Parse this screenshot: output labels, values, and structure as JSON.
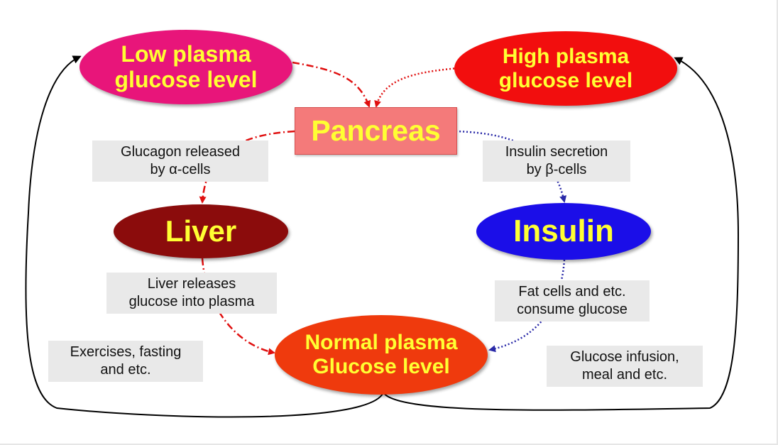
{
  "nodes": {
    "low_glucose": "Low plasma\nglucose level",
    "high_glucose": "High plasma\nglucose level",
    "pancreas": "Pancreas",
    "liver": "Liver",
    "insulin": "Insulin",
    "normal_glucose": "Normal plasma\nGlucose level"
  },
  "labels": {
    "glucagon": "Glucagon released\nby α-cells",
    "insulin_secretion": "Insulin secretion\nby β-cells",
    "liver_release": "Liver releases\nglucose into plasma",
    "fat_cells": "Fat cells and etc.\nconsume glucose",
    "exercise": "Exercises, fasting\nand etc.",
    "infusion": "Glucose infusion,\nmeal and etc."
  },
  "colors": {
    "low_fill": "#e8157a",
    "high_fill": "#f20e0e",
    "liver_fill": "#8b0c0c",
    "insulin_fill": "#1b0ee8",
    "normal_fill": "#ef3a0d",
    "pancreas_fill": "#f47a7a",
    "node_text": "#ffff33",
    "glucagon_path": "#e01010",
    "insulin_path": "#2a2aa8",
    "feedback_path": "#000000"
  }
}
